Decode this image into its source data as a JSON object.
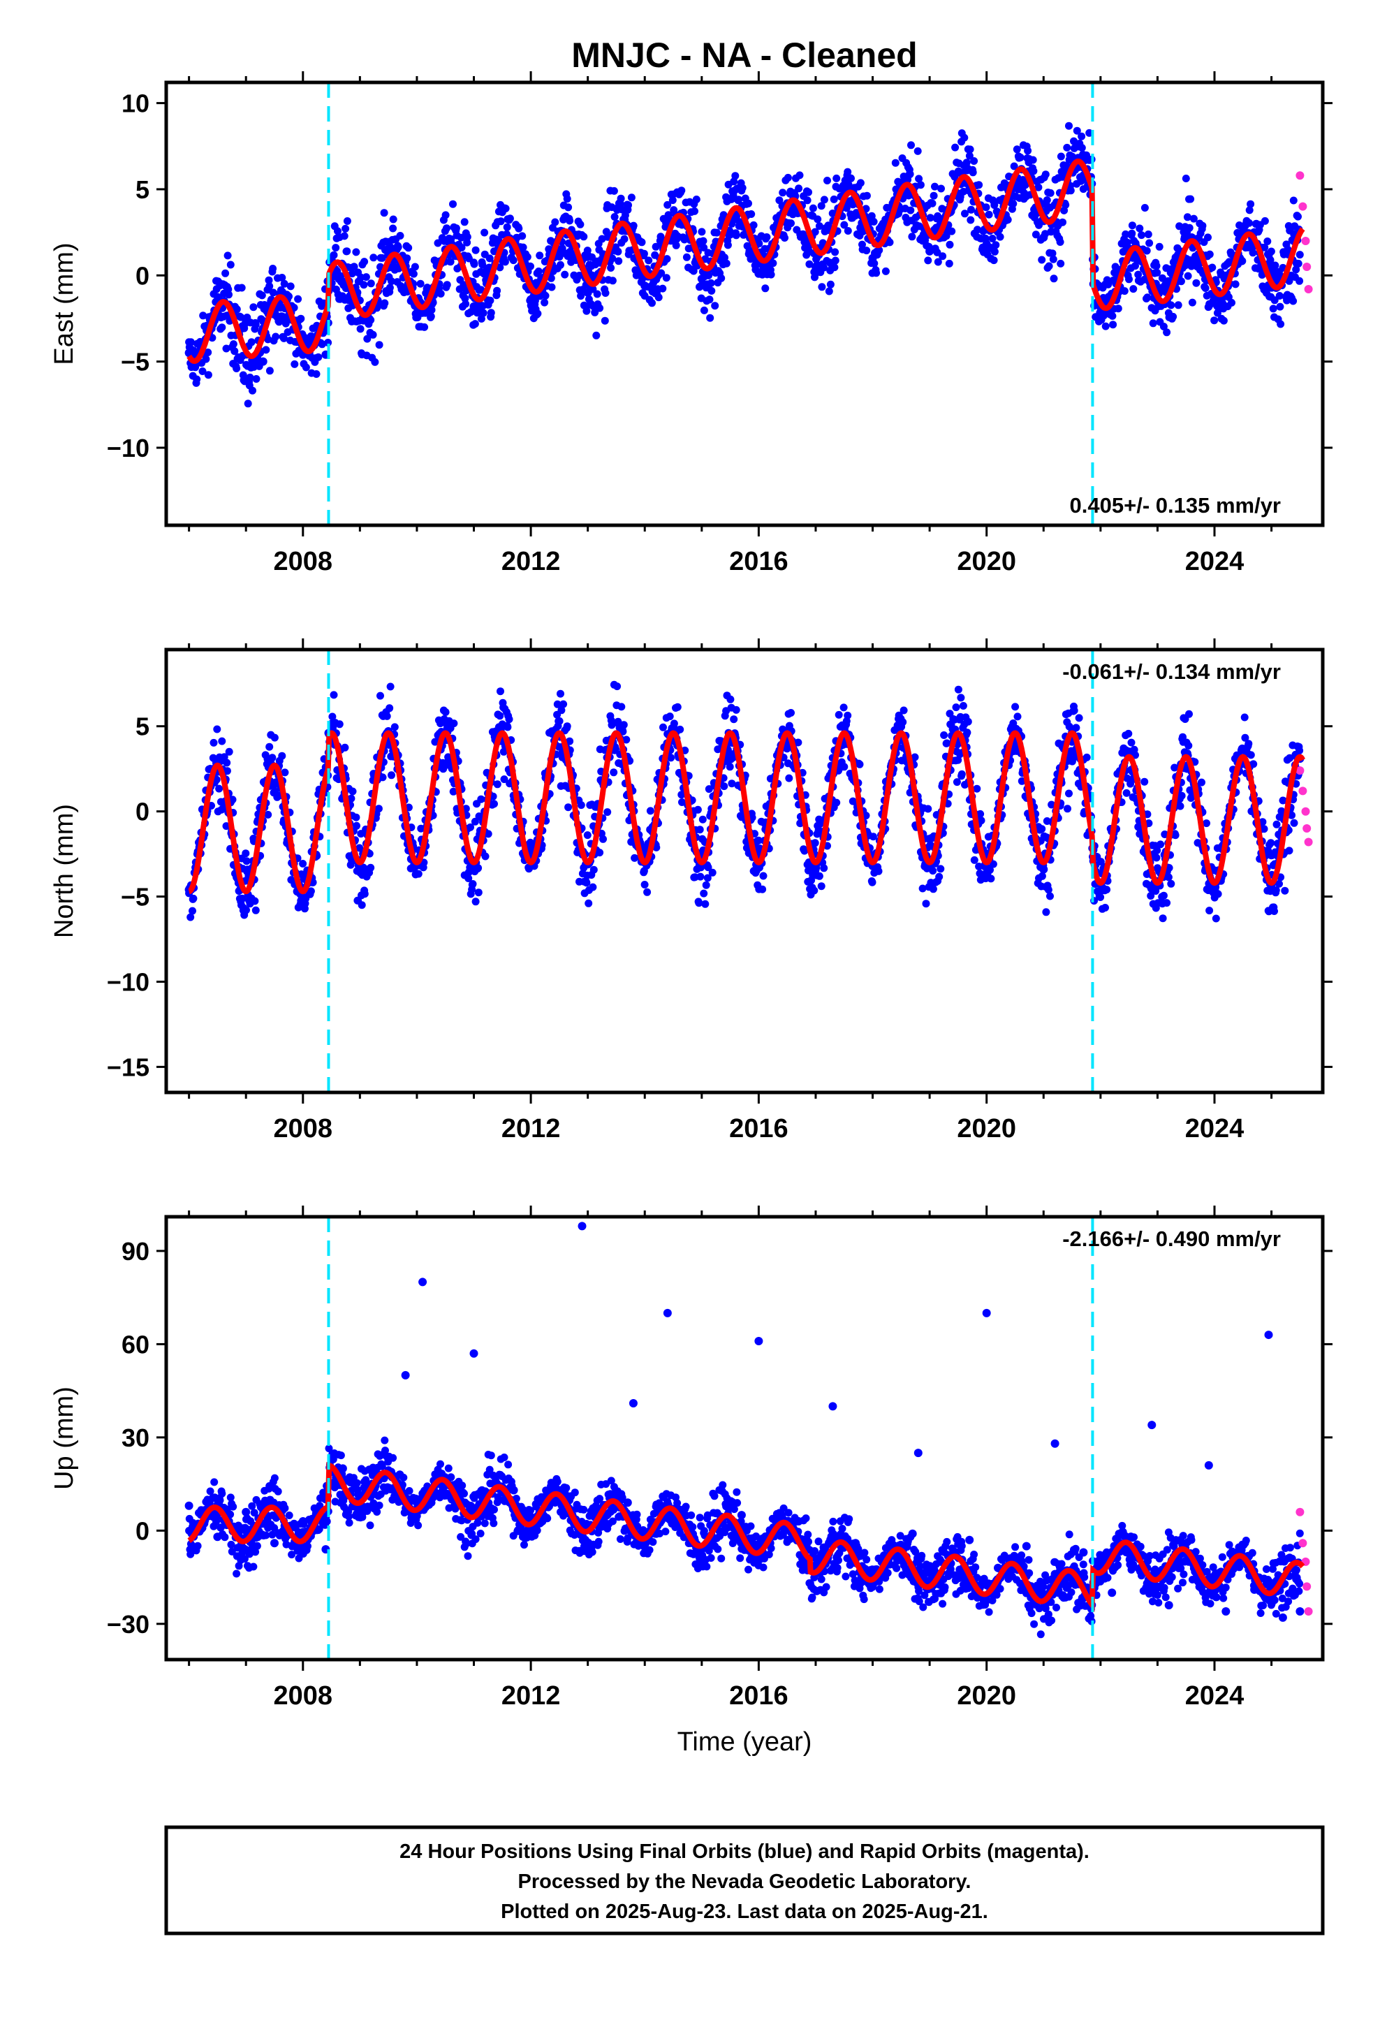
{
  "title": "MNJC  - NA - Cleaned",
  "colors": {
    "final_orbits": "#0000ff",
    "rapid_orbits": "#ff33cc",
    "model_fit": "#ff0000",
    "offsets": "#00e5ff"
  },
  "chart_data": [
    {
      "type": "scatter",
      "component": "east",
      "ylabel": "East (mm)",
      "xlabel": "",
      "xlim": [
        2005.6,
        2025.9
      ],
      "ylim": [
        -14.5,
        11.2
      ],
      "yticks": [
        10,
        5,
        0,
        -5,
        -10
      ],
      "ytick_labels": [
        "10",
        "5",
        "0",
        "−5",
        "−10"
      ],
      "xticks": [
        2008,
        2012,
        2016,
        2020,
        2024
      ],
      "xtick_labels": [
        "2008",
        "2012",
        "2016",
        "2020",
        "2024"
      ],
      "offsets": [
        2008.45,
        2021.86
      ],
      "rate_label": "0.405+/- 0.135 mm/yr",
      "rate_position": "bottom-right",
      "series": [
        {
          "name": "Final Orbits",
          "color": "blue",
          "x": [
            2006.0,
            2006.5,
            2006.9,
            2007.3,
            2007.6,
            2008.0,
            2008.4,
            2008.7,
            2009.1,
            2009.5,
            2010.0,
            2010.5,
            2011.0,
            2011.5,
            2012.0,
            2012.5,
            2013.0,
            2013.6,
            2014.0,
            2014.6,
            2015.0,
            2015.6,
            2016.0,
            2016.6,
            2017.0,
            2017.6,
            2018.0,
            2018.7,
            2019.0,
            2019.7,
            2020.0,
            2020.7,
            2021.0,
            2021.7,
            2022.0,
            2022.6,
            2023.0,
            2023.6,
            2024.0,
            2024.7,
            2025.0,
            2025.4
          ],
          "y": [
            -4.5,
            -2.0,
            -4.8,
            -5.0,
            -1.8,
            -4.6,
            -4.6,
            0.6,
            -2.4,
            1.2,
            -2.2,
            1.5,
            -1.8,
            1.8,
            -1.4,
            2.2,
            -1.0,
            2.6,
            -0.6,
            3.0,
            -0.2,
            3.4,
            0.1,
            3.8,
            0.5,
            4.3,
            1.0,
            4.7,
            1.4,
            5.0,
            1.8,
            5.4,
            2.2,
            5.8,
            -1.8,
            1.6,
            -1.5,
            2.2,
            -1.0,
            2.5,
            -0.7,
            2.4
          ]
        },
        {
          "name": "Rapid Orbits",
          "color": "magenta",
          "x": [
            2025.5,
            2025.55,
            2025.6,
            2025.62,
            2025.65
          ],
          "y": [
            5.8,
            4.0,
            2.0,
            0.5,
            -0.8
          ]
        }
      ],
      "model_fit": {
        "rate": 0.405,
        "annual_amplitude": 3.3,
        "offsets_mm": [
          0,
          -6.0
        ]
      }
    },
    {
      "type": "scatter",
      "component": "north",
      "ylabel": "North (mm)",
      "xlabel": "",
      "xlim": [
        2005.6,
        2025.9
      ],
      "ylim": [
        -16.5,
        9.5
      ],
      "yticks": [
        5,
        0,
        -5,
        -10,
        -15
      ],
      "ytick_labels": [
        "5",
        "0",
        "−5",
        "−10",
        "−15"
      ],
      "xticks": [
        2008,
        2012,
        2016,
        2020,
        2024
      ],
      "xtick_labels": [
        "2008",
        "2012",
        "2016",
        "2020",
        "2024"
      ],
      "offsets": [
        2008.45,
        2021.86
      ],
      "rate_label": "-0.061+/- 0.134 mm/yr",
      "rate_position": "top-right",
      "series": [
        {
          "name": "Final Orbits",
          "color": "blue",
          "x": [
            2006.0,
            2006.5,
            2006.9,
            2007.4,
            2007.9,
            2008.45,
            2008.9,
            2009.5,
            2009.9,
            2010.5,
            2011.0,
            2011.5,
            2012.0,
            2012.5,
            2013.0,
            2013.5,
            2014.0,
            2014.5,
            2015.0,
            2015.5,
            2016.0,
            2016.5,
            2017.0,
            2017.5,
            2018.0,
            2018.5,
            2019.0,
            2019.5,
            2020.0,
            2020.5,
            2021.0,
            2021.5,
            2022.0,
            2022.5,
            2023.0,
            2023.5,
            2024.0,
            2024.5,
            2025.0,
            2025.5
          ],
          "y": [
            -4.6,
            2.8,
            -4.6,
            2.6,
            -4.7,
            4.6,
            -2.6,
            4.7,
            -2.8,
            4.6,
            -3.0,
            4.5,
            -2.9,
            4.5,
            -3.0,
            4.5,
            -3.0,
            4.4,
            -3.1,
            4.4,
            -3.1,
            4.3,
            -3.2,
            4.3,
            -3.2,
            4.2,
            -3.3,
            4.2,
            -3.3,
            4.1,
            -3.4,
            4.1,
            -4.2,
            3.2,
            -4.1,
            3.2,
            -4.2,
            3.1,
            -4.3,
            3.1
          ]
        },
        {
          "name": "Rapid Orbits",
          "color": "magenta",
          "x": [
            2025.5,
            2025.55,
            2025.6,
            2025.62,
            2025.65
          ],
          "y": [
            2.4,
            1.2,
            0.0,
            -1.0,
            -1.8
          ]
        }
      ],
      "model_fit": {
        "rate": -0.061,
        "annual_amplitude": 3.7,
        "offsets_mm": [
          1.0,
          -0.8
        ]
      }
    },
    {
      "type": "scatter",
      "component": "up",
      "ylabel": "Up (mm)",
      "xlabel": "Time (year)",
      "xlim": [
        2005.6,
        2025.9
      ],
      "ylim": [
        -41.5,
        101.0
      ],
      "yticks": [
        90,
        60,
        30,
        0,
        -30
      ],
      "ytick_labels": [
        "90",
        "60",
        "30",
        "0",
        "−30"
      ],
      "xticks": [
        2008,
        2012,
        2016,
        2020,
        2024
      ],
      "xtick_labels": [
        "2008",
        "2012",
        "2016",
        "2020",
        "2024"
      ],
      "offsets": [
        2008.45,
        2021.86
      ],
      "rate_label": "-2.166+/- 0.490 mm/yr",
      "rate_position": "top-right",
      "series": [
        {
          "name": "Final Orbits",
          "color": "blue",
          "x": [
            2006.0,
            2006.5,
            2007.0,
            2007.5,
            2008.0,
            2008.4,
            2008.7,
            2009.2,
            2009.7,
            2010.2,
            2010.7,
            2011.2,
            2011.7,
            2012.2,
            2012.7,
            2013.2,
            2013.7,
            2014.2,
            2014.7,
            2015.2,
            2015.7,
            2016.2,
            2016.7,
            2017.2,
            2017.7,
            2018.2,
            2018.7,
            2019.2,
            2019.7,
            2020.2,
            2020.7,
            2021.2,
            2021.7,
            2022.2,
            2022.7,
            2023.2,
            2023.7,
            2024.2,
            2024.7,
            2025.2,
            2025.5
          ],
          "y": [
            8,
            -2,
            6,
            -4,
            3,
            -6,
            20,
            12,
            18,
            9,
            15,
            6,
            13,
            3,
            11,
            1,
            9,
            -1,
            7,
            -3,
            5,
            -4,
            3,
            -7,
            -4,
            -8,
            -1,
            -10,
            -3,
            -12,
            -5,
            -14,
            -7,
            -20,
            -12,
            -24,
            -16,
            -26,
            -19,
            -28,
            -26
          ]
        },
        {
          "name": "Rapid Orbits",
          "color": "magenta",
          "x": [
            2025.5,
            2025.55,
            2025.6,
            2025.62,
            2025.65
          ],
          "y": [
            6,
            -4,
            -10,
            -18,
            -26
          ]
        }
      ],
      "outliers": {
        "x": [
          2012.9,
          2010.1,
          2014.4,
          2016.0,
          2020.0,
          2024.95,
          2009.8,
          2011.0,
          2013.8,
          2017.3,
          2018.8,
          2021.2,
          2022.9,
          2023.9
        ],
        "y": [
          98,
          80,
          70,
          61,
          70,
          63,
          50,
          57,
          41,
          40,
          25,
          28,
          34,
          21
        ]
      },
      "model_fit": {
        "rate": -2.166,
        "annual_amplitude": 5.5,
        "offsets_mm": [
          22.0,
          3.0
        ]
      }
    }
  ],
  "footer": {
    "line1": "24 Hour Positions Using Final Orbits (blue) and Rapid Orbits (magenta).",
    "line2": "Processed by the Nevada Geodetic Laboratory.",
    "line3": "Plotted on 2025-Aug-23. Last data on 2025-Aug-21."
  }
}
